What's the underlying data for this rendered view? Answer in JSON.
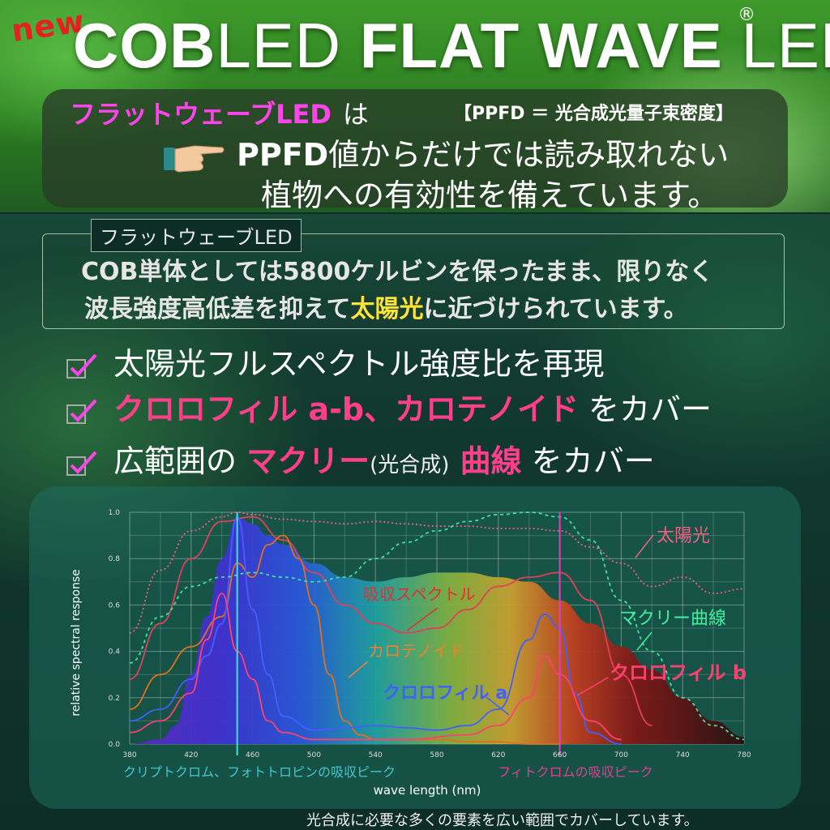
{
  "header": {
    "new_tag": "new",
    "title_bold_1": "COB",
    "title_light_1": "LED ",
    "title_bold_2": "FLAT WAVE ",
    "title_light_2": "LED",
    "registered": "®"
  },
  "intro": {
    "brand": "フラットウェーブLED",
    "ha": "は",
    "ppfd_note": "【PPFD ＝ 光合成光量子束密度】",
    "line2_bold": "PPFD",
    "line2_rest": "値からだけでは読み取れない",
    "line3": "植物への有効性を備えています。"
  },
  "feature": {
    "tab": "フラットウェーブLED",
    "line1": "COB単体としては5800ケルビンを保ったまま、限りなく",
    "line2_pre": "波長強度高低差を抑えて",
    "line2_highlight": "太陽光",
    "line2_post": "に近づけられています。"
  },
  "checklist": {
    "item1": "太陽光フルスペクトル強度比を再現",
    "item2_highlight": "クロロフィル a-b、カロテノイド",
    "item2_post": " をカバー",
    "item3_pre": "広範囲の ",
    "item3_highlight1": "マクリー",
    "item3_small": "(光合成)",
    "item3_highlight2": " 曲線",
    "item3_post": " をカバー"
  },
  "chart_data": {
    "type": "line",
    "xlabel": "wave length (nm)",
    "ylabel": "relative spectral response",
    "xlim": [
      380,
      780
    ],
    "ylim": [
      0,
      1.0
    ],
    "x_ticks": [
      380,
      420,
      460,
      500,
      540,
      580,
      620,
      660,
      700,
      740,
      780
    ],
    "y_ticks": [
      "0.0",
      "0.2",
      "0.4",
      "0.6",
      "0.8",
      "1.0"
    ],
    "colors": {
      "sunlight": "#f06080",
      "absorption": "#e0405a",
      "carotenoid": "#e07020",
      "chl_a": "#4060ff",
      "chl_b": "#ff4070",
      "mccree": "#40e0a0",
      "cryptochrome_line": "#40e0e0",
      "phytochrome_line": "#e040c0"
    },
    "annotations": {
      "sunlight": "太陽光",
      "absorption": "吸収スペクトル",
      "carotenoid": "カロテノイド",
      "chl_a": "クロロフィル a",
      "chl_b": "クロロフィル b",
      "mccree": "マクリー曲線",
      "crypto_peak": "クリプトクロム、フォトトロピンの吸収ピーク",
      "phyto_peak": "フィトクロムの吸収ピーク"
    },
    "series": [
      {
        "key": "led",
        "x": [
          380,
          400,
          410,
          420,
          430,
          440,
          450,
          460,
          470,
          480,
          500,
          520,
          540,
          560,
          580,
          600,
          620,
          640,
          660,
          680,
          700,
          720,
          740,
          760,
          780
        ],
        "values": [
          0.0,
          0.02,
          0.08,
          0.3,
          0.55,
          0.8,
          0.98,
          0.95,
          0.9,
          0.86,
          0.78,
          0.72,
          0.7,
          0.72,
          0.74,
          0.74,
          0.72,
          0.7,
          0.62,
          0.52,
          0.42,
          0.32,
          0.2,
          0.1,
          0.03
        ]
      },
      {
        "key": "sunlight",
        "x": [
          380,
          400,
          420,
          440,
          450,
          460,
          480,
          500,
          520,
          540,
          560,
          580,
          600,
          620,
          640,
          660,
          680,
          700,
          720,
          740,
          760,
          780
        ],
        "values": [
          0.48,
          0.75,
          0.92,
          0.98,
          1.0,
          0.99,
          0.97,
          0.96,
          0.95,
          0.96,
          0.95,
          0.94,
          0.94,
          0.93,
          0.93,
          0.92,
          0.85,
          0.78,
          0.68,
          0.72,
          0.65,
          0.67
        ]
      },
      {
        "key": "absorption",
        "x": [
          380,
          400,
          420,
          440,
          460,
          480,
          500,
          520,
          540,
          560,
          580,
          600,
          620,
          640,
          660,
          680,
          700,
          720
        ],
        "values": [
          0.28,
          0.52,
          0.8,
          0.96,
          0.98,
          0.88,
          0.74,
          0.6,
          0.52,
          0.48,
          0.5,
          0.58,
          0.68,
          0.72,
          0.74,
          0.62,
          0.3,
          0.08
        ]
      },
      {
        "key": "carotenoid",
        "x": [
          380,
          400,
          420,
          440,
          450,
          460,
          470,
          480,
          490,
          500,
          510,
          520,
          530,
          540,
          560,
          580,
          600,
          620,
          640,
          660
        ],
        "values": [
          0.15,
          0.3,
          0.42,
          0.55,
          0.78,
          0.72,
          0.86,
          0.9,
          0.8,
          0.6,
          0.3,
          0.1,
          0.04,
          0.02,
          0.02,
          0.02,
          0.01,
          0.01,
          0.0,
          0.0
        ]
      },
      {
        "key": "chl_a",
        "x": [
          380,
          400,
          420,
          430,
          440,
          450,
          460,
          470,
          480,
          500,
          520,
          540,
          560,
          580,
          600,
          620,
          640,
          650,
          660,
          670,
          680,
          700
        ],
        "values": [
          0.1,
          0.15,
          0.28,
          0.38,
          0.52,
          0.98,
          0.58,
          0.3,
          0.12,
          0.06,
          0.07,
          0.08,
          0.07,
          0.06,
          0.08,
          0.15,
          0.45,
          0.56,
          0.5,
          0.22,
          0.05,
          0.0
        ]
      },
      {
        "key": "chl_b",
        "x": [
          380,
          400,
          420,
          430,
          440,
          450,
          460,
          470,
          480,
          500,
          520,
          560,
          600,
          620,
          640,
          650,
          660,
          680,
          700
        ],
        "values": [
          0.05,
          0.1,
          0.22,
          0.45,
          0.65,
          0.4,
          0.28,
          0.1,
          0.05,
          0.02,
          0.02,
          0.02,
          0.04,
          0.08,
          0.2,
          0.38,
          0.3,
          0.1,
          0.02
        ]
      },
      {
        "key": "mccree",
        "x": [
          380,
          400,
          420,
          440,
          460,
          480,
          500,
          520,
          540,
          560,
          580,
          600,
          620,
          640,
          660,
          680,
          700,
          720,
          740,
          760,
          780
        ],
        "values": [
          0.35,
          0.55,
          0.68,
          0.72,
          0.74,
          0.72,
          0.7,
          0.72,
          0.8,
          0.87,
          0.92,
          0.96,
          0.99,
          1.0,
          0.98,
          0.88,
          0.62,
          0.4,
          0.2,
          0.08,
          0.02
        ]
      }
    ],
    "vlines": [
      450,
      660
    ]
  },
  "footnote": "光合成に必要な多くの要素を広い範囲でカバーしています。"
}
